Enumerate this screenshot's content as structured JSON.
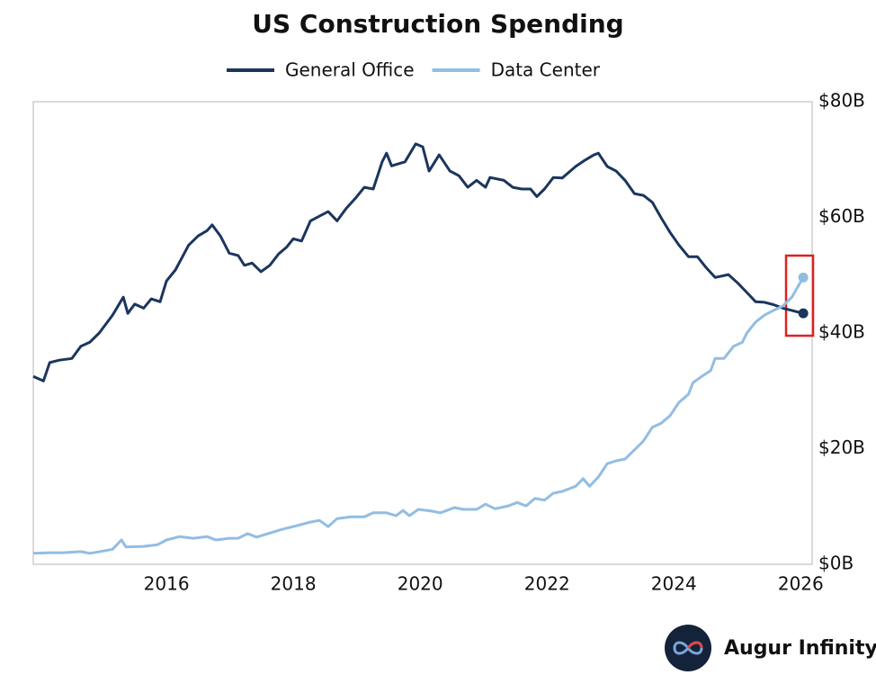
{
  "chart_data": {
    "type": "line",
    "title": "US Construction Spending",
    "brand": "Augur Infinity",
    "xlim": [
      2013.9,
      2026.18
    ],
    "xticks": [
      2016,
      2018,
      2020,
      2022,
      2024,
      2026
    ],
    "ylim": [
      0,
      80
    ],
    "yticks": [
      {
        "value": 0,
        "label": "$0B"
      },
      {
        "value": 20,
        "label": "$20B"
      },
      {
        "value": 40,
        "label": "$40B"
      },
      {
        "value": 60,
        "label": "$60B"
      },
      {
        "value": 80,
        "label": "$80B"
      }
    ],
    "grid": false,
    "legend": "top",
    "series": [
      {
        "name": "General Office",
        "color": "#1b365d",
        "x": [
          2013.9,
          2014.06,
          2014.16,
          2014.31,
          2014.51,
          2014.65,
          2014.79,
          2014.94,
          2015.15,
          2015.32,
          2015.39,
          2015.5,
          2015.64,
          2015.76,
          2015.9,
          2016.0,
          2016.14,
          2016.35,
          2016.5,
          2016.64,
          2016.72,
          2016.85,
          2016.99,
          2017.13,
          2017.23,
          2017.35,
          2017.49,
          2017.63,
          2017.77,
          2017.89,
          2018.0,
          2018.13,
          2018.27,
          2018.41,
          2018.55,
          2018.69,
          2018.83,
          2018.98,
          2019.12,
          2019.26,
          2019.4,
          2019.47,
          2019.55,
          2019.76,
          2019.93,
          2020.04,
          2020.14,
          2020.3,
          2020.47,
          2020.61,
          2020.75,
          2020.89,
          2021.03,
          2021.1,
          2021.32,
          2021.46,
          2021.6,
          2021.74,
          2021.84,
          2021.96,
          2022.1,
          2022.24,
          2022.45,
          2022.6,
          2022.74,
          2022.81,
          2022.95,
          2023.09,
          2023.23,
          2023.38,
          2023.52,
          2023.66,
          2023.8,
          2023.94,
          2024.08,
          2024.23,
          2024.37,
          2024.51,
          2024.65,
          2024.86,
          2025.01,
          2025.15,
          2025.29,
          2025.43,
          2025.57,
          2025.72,
          2025.86,
          2026.04
        ],
        "values": [
          32.5,
          31.7,
          34.9,
          35.3,
          35.6,
          37.7,
          38.4,
          40,
          43.1,
          46.2,
          43.4,
          45,
          44.3,
          45.9,
          45.4,
          49,
          50.9,
          55.2,
          56.8,
          57.7,
          58.7,
          56.8,
          53.8,
          53.4,
          51.7,
          52.1,
          50.6,
          51.7,
          53.7,
          54.8,
          56.3,
          55.9,
          59.4,
          60.2,
          61,
          59.4,
          61.5,
          63.3,
          65.2,
          64.9,
          69.6,
          71.1,
          68.9,
          69.6,
          72.7,
          72.2,
          68,
          70.8,
          68,
          67.2,
          65.2,
          66.4,
          65.2,
          66.9,
          66.4,
          65.2,
          64.9,
          64.9,
          63.6,
          64.9,
          66.9,
          66.8,
          68.8,
          69.9,
          70.8,
          71.1,
          68.8,
          68,
          66.4,
          64.1,
          63.8,
          62.6,
          59.9,
          57.4,
          55.2,
          53.2,
          53.2,
          51.3,
          49.6,
          50.1,
          48.6,
          47,
          45.4,
          45.3,
          44.9,
          44.3,
          43.9,
          43.4
        ]
      },
      {
        "name": "Data Center",
        "color": "#92bde3",
        "x": [
          2013.9,
          2014.16,
          2014.37,
          2014.65,
          2014.79,
          2015.01,
          2015.15,
          2015.29,
          2015.36,
          2015.64,
          2015.86,
          2016.0,
          2016.21,
          2016.42,
          2016.64,
          2016.78,
          2016.99,
          2017.13,
          2017.28,
          2017.42,
          2017.63,
          2017.84,
          2018.06,
          2018.27,
          2018.41,
          2018.55,
          2018.69,
          2018.91,
          2019.12,
          2019.26,
          2019.47,
          2019.62,
          2019.73,
          2019.83,
          2019.97,
          2020.18,
          2020.32,
          2020.54,
          2020.68,
          2020.89,
          2021.03,
          2021.18,
          2021.39,
          2021.53,
          2021.67,
          2021.81,
          2021.96,
          2022.1,
          2022.24,
          2022.45,
          2022.57,
          2022.67,
          2022.81,
          2022.95,
          2023.09,
          2023.23,
          2023.38,
          2023.52,
          2023.66,
          2023.8,
          2023.94,
          2024.08,
          2024.23,
          2024.3,
          2024.44,
          2024.58,
          2024.65,
          2024.79,
          2024.94,
          2025.08,
          2025.15,
          2025.29,
          2025.43,
          2025.57,
          2025.72,
          2025.86,
          2026.04
        ],
        "values": [
          1.9,
          2.0,
          2.0,
          2.2,
          1.9,
          2.3,
          2.6,
          4.2,
          3.0,
          3.1,
          3.4,
          4.2,
          4.8,
          4.5,
          4.8,
          4.2,
          4.5,
          4.5,
          5.3,
          4.7,
          5.4,
          6.1,
          6.7,
          7.3,
          7.6,
          6.5,
          7.9,
          8.2,
          8.2,
          8.9,
          8.9,
          8.4,
          9.3,
          8.4,
          9.5,
          9.2,
          8.9,
          9.8,
          9.5,
          9.5,
          10.4,
          9.6,
          10.1,
          10.7,
          10.1,
          11.4,
          11.1,
          12.3,
          12.6,
          13.5,
          14.8,
          13.5,
          15.1,
          17.4,
          17.9,
          18.2,
          19.8,
          21.3,
          23.7,
          24.4,
          25.7,
          28,
          29.4,
          31.4,
          32.5,
          33.5,
          35.6,
          35.6,
          37.7,
          38.4,
          40,
          41.9,
          43.1,
          43.9,
          44.7,
          46.2,
          49.6
        ]
      }
    ]
  }
}
